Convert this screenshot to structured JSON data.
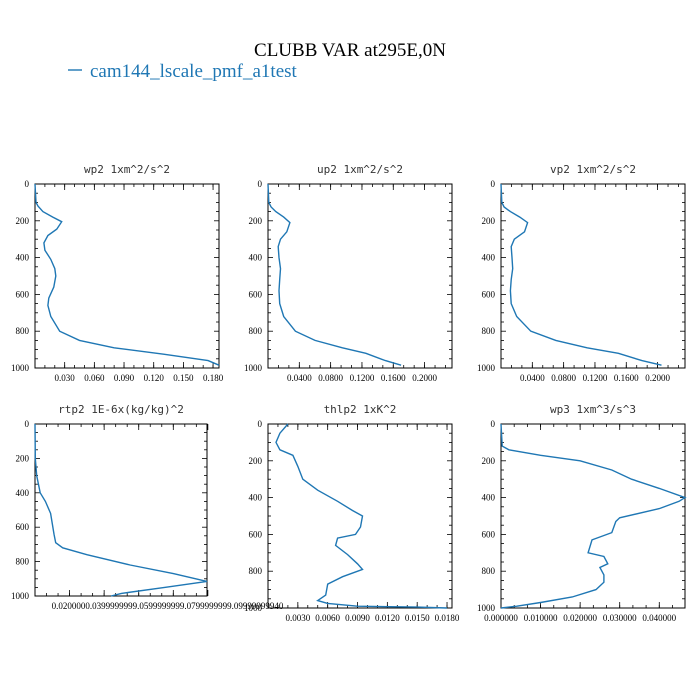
{
  "figure": {
    "title": "CLUBB VAR at295E,0N",
    "legend_label": "cam144_lscale_pmf_a1test",
    "series_color": "#1f77b4"
  },
  "chart_data": [
    {
      "type": "line",
      "title": "wp2  1xm^2/s^2",
      "series_name": "cam144_lscale_pmf_a1test",
      "xlim": [
        0,
        0.186
      ],
      "ylim": [
        0,
        1000
      ],
      "y_inverted": true,
      "xticks": [
        "0.030",
        "0.060",
        "0.090",
        "0.120",
        "0.150",
        "0.180"
      ],
      "xtick_values": [
        0.03,
        0.06,
        0.09,
        0.12,
        0.15,
        0.18
      ],
      "yticks": [
        0,
        200,
        400,
        600,
        800,
        1000
      ],
      "x": [
        0.0,
        0.001,
        0.003,
        0.008,
        0.018,
        0.027,
        0.022,
        0.013,
        0.009,
        0.01,
        0.016,
        0.02,
        0.021,
        0.019,
        0.014,
        0.013,
        0.016,
        0.025,
        0.045,
        0.08,
        0.13,
        0.175,
        0.186
      ],
      "y": [
        0,
        100,
        120,
        150,
        180,
        205,
        245,
        280,
        320,
        360,
        410,
        460,
        500,
        560,
        620,
        660,
        720,
        800,
        850,
        890,
        925,
        960,
        985
      ]
    },
    {
      "type": "line",
      "title": "up2  1xm^2/s^2",
      "series_name": "cam144_lscale_pmf_a1test",
      "xlim": [
        0,
        0.235
      ],
      "ylim": [
        0,
        1000
      ],
      "y_inverted": true,
      "xticks": [
        "0.0400",
        "0.0800",
        "0.1200",
        "0.1600",
        "0.2000"
      ],
      "xtick_values": [
        0.04,
        0.08,
        0.12,
        0.16,
        0.2
      ],
      "yticks": [
        0,
        200,
        400,
        600,
        800,
        1000
      ],
      "x": [
        0.0,
        0.001,
        0.004,
        0.01,
        0.02,
        0.028,
        0.024,
        0.016,
        0.013,
        0.014,
        0.016,
        0.015,
        0.014,
        0.015,
        0.02,
        0.035,
        0.06,
        0.095,
        0.125,
        0.15,
        0.17
      ],
      "y": [
        0,
        100,
        125,
        150,
        180,
        210,
        260,
        300,
        340,
        400,
        460,
        520,
        580,
        650,
        720,
        800,
        850,
        890,
        920,
        960,
        985
      ]
    },
    {
      "type": "line",
      "title": "vp2  1xm^2/s^2",
      "series_name": "cam144_lscale_pmf_a1test",
      "xlim": [
        0,
        0.235
      ],
      "ylim": [
        0,
        1000
      ],
      "y_inverted": true,
      "xticks": [
        "0.0400",
        "0.0800",
        "0.1200",
        "0.1600",
        "0.2000"
      ],
      "xtick_values": [
        0.04,
        0.08,
        0.12,
        0.16,
        0.2
      ],
      "yticks": [
        0,
        200,
        400,
        600,
        800,
        1000
      ],
      "x": [
        0.0,
        0.001,
        0.004,
        0.012,
        0.024,
        0.034,
        0.03,
        0.017,
        0.013,
        0.014,
        0.015,
        0.013,
        0.012,
        0.013,
        0.02,
        0.038,
        0.07,
        0.11,
        0.15,
        0.18,
        0.205
      ],
      "y": [
        0,
        100,
        125,
        150,
        180,
        210,
        260,
        300,
        340,
        400,
        460,
        520,
        580,
        650,
        720,
        800,
        850,
        890,
        920,
        960,
        985
      ]
    },
    {
      "type": "line",
      "title": "rtp2  1E-6x(kg/kg)^2",
      "series_name": "cam144_lscale_pmf_a1test",
      "xlim": [
        0,
        0.0995
      ],
      "ylim": [
        0,
        1000
      ],
      "y_inverted": true,
      "xticks": [
        "0.0200000",
        "0.0399999",
        "0.0599999",
        "0.0799999",
        "0.0999999"
      ],
      "xtick_labels_raw": "0.0200000.0399999999.0599999999.0799999999.09999999940",
      "xtick_values": [
        0.02,
        0.04,
        0.06,
        0.08,
        0.1
      ],
      "yticks": [
        0,
        200,
        400,
        600,
        800,
        1000
      ],
      "x": [
        0.0,
        0.0002,
        0.001,
        0.003,
        0.006,
        0.009,
        0.01,
        0.011,
        0.012,
        0.016,
        0.03,
        0.055,
        0.08,
        0.0995,
        0.075,
        0.05,
        0.044
      ],
      "y": [
        0,
        200,
        300,
        400,
        450,
        520,
        580,
        640,
        690,
        720,
        760,
        820,
        870,
        915,
        950,
        985,
        1000
      ]
    },
    {
      "type": "line",
      "title": "thlp2  1xK^2",
      "series_name": "cam144_lscale_pmf_a1test",
      "xlim": [
        0,
        0.0185
      ],
      "ylim": [
        0,
        1000
      ],
      "y_inverted": true,
      "xticks": [
        "0.0030",
        "0.0060",
        "0.0090",
        "0.0120",
        "0.0150",
        "0.0180"
      ],
      "xtick_values": [
        0.003,
        0.006,
        0.009,
        0.012,
        0.015,
        0.018
      ],
      "yticks": [
        0,
        200,
        400,
        600,
        800,
        1000
      ],
      "x": [
        0.002,
        0.0012,
        0.0008,
        0.0012,
        0.0025,
        0.003,
        0.0035,
        0.005,
        0.007,
        0.0085,
        0.0095,
        0.0093,
        0.0088,
        0.007,
        0.0068,
        0.008,
        0.009,
        0.0095,
        0.0075,
        0.006,
        0.0058,
        0.005,
        0.006,
        0.009,
        0.015,
        0.018
      ],
      "y": [
        0,
        50,
        100,
        140,
        170,
        230,
        300,
        360,
        420,
        470,
        500,
        560,
        600,
        620,
        660,
        710,
        760,
        790,
        830,
        870,
        930,
        960,
        975,
        990,
        995,
        1000
      ]
    },
    {
      "type": "line",
      "title": "wp3  1xm^3/s^3",
      "series_name": "cam144_lscale_pmf_a1test",
      "xlim": [
        0,
        0.0465
      ],
      "ylim": [
        0,
        1000
      ],
      "y_inverted": true,
      "xticks": [
        "0.000000",
        "0.010000",
        "0.020000",
        "0.030000",
        "0.040000"
      ],
      "xtick_values": [
        0.0,
        0.01,
        0.02,
        0.03,
        0.04
      ],
      "yticks": [
        0,
        200,
        400,
        600,
        800,
        1000
      ],
      "x": [
        0.0,
        0.0003,
        0.002,
        0.01,
        0.02,
        0.028,
        0.033,
        0.04,
        0.0465,
        0.045,
        0.04,
        0.03,
        0.029,
        0.028,
        0.023,
        0.022,
        0.026,
        0.027,
        0.025,
        0.026,
        0.026,
        0.024,
        0.018,
        0.01,
        0.004,
        0.0
      ],
      "y": [
        0,
        120,
        140,
        170,
        200,
        250,
        300,
        350,
        400,
        420,
        460,
        510,
        530,
        590,
        630,
        700,
        720,
        760,
        780,
        820,
        860,
        900,
        940,
        970,
        990,
        1000
      ]
    }
  ]
}
